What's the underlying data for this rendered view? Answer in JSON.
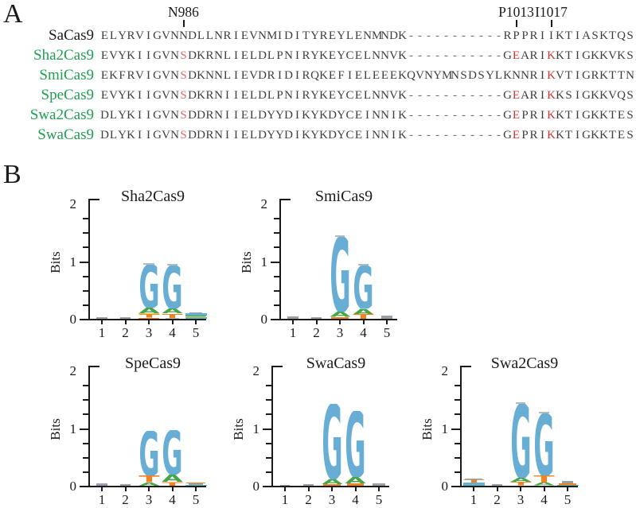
{
  "panel_a": {
    "label": "A",
    "annotations": [
      {
        "text": "N986",
        "column": 10
      },
      {
        "text": "P1013",
        "column": 48
      },
      {
        "text": "I1017",
        "column": 52
      }
    ],
    "rows": [
      {
        "name": "SaCas9",
        "name_color": "#1b1b1b",
        "seq": "ELYRVIGVNNDLLNRIEVNMIDITYREYLENMNDK-----------RPPRIIKTIASKTQS",
        "red_light": [],
        "red": []
      },
      {
        "name": "Sha2Cas9",
        "name_color": "#1ea050",
        "seq": "EVYKIIGVNSDKRNLIELDLPNIRYKEYCELNNVK-----------GEARIKKTIGKKVKS",
        "red_light": [
          10
        ],
        "red": [
          48,
          52
        ]
      },
      {
        "name": "SmiCas9",
        "name_color": "#1ea050",
        "seq": "EKFRVIGVNSDKNNLIEVDRIDIRQKEFIELEEEKQVNYMNSDSYLKNNRIKVTIGRKTTN",
        "red_light": [
          10
        ],
        "red": [
          52
        ]
      },
      {
        "name": "SpeCas9",
        "name_color": "#1ea050",
        "seq": "EVYKIIGVNSDKRNIIELDLPNIRYKEYCELNNVK-----------GEARIKKSIGKKVQS",
        "red_light": [
          10
        ],
        "red": [
          48,
          52
        ]
      },
      {
        "name": "Swa2Cas9",
        "name_color": "#1ea050",
        "seq": "DLYKIIGVNSDDRNIIELDYYDIKYKDYCEINNIK-----------GEPRIKKTIGKKTES",
        "red_light": [
          10
        ],
        "red": [
          48,
          52
        ]
      },
      {
        "name": "SwaCas9",
        "name_color": "#1ea050",
        "seq": "DLYKIIGVNSDDRNIIELDYYDIKYKDYCEINNIK-----------GEPRIKKTIGKKTES",
        "red_light": [
          10
        ],
        "red": [
          48,
          52
        ]
      }
    ],
    "colors": {
      "sequence": "#3d3d3d",
      "dash": "#6f6f6f",
      "red": "#d63434",
      "red_light": "#e06a6a"
    }
  },
  "panel_b": {
    "label": "B",
    "ylabel": "Bits",
    "ytick_labels": [
      "0",
      "1",
      "2"
    ],
    "xtick_labels": [
      "1",
      "2",
      "3",
      "4",
      "5"
    ],
    "ylim": [
      0,
      2
    ]
  },
  "chart_data": [
    {
      "type": "sequence_logo",
      "title": "Sha2Cas9",
      "ylabel": "Bits",
      "ylim": [
        0,
        2
      ],
      "x": [
        1,
        2,
        3,
        4,
        5
      ],
      "stacks": [
        [
          {
            "l": "bar",
            "c": "#9aa0a6",
            "b": 0.035,
            "w": 0.5
          }
        ],
        [
          {
            "l": "bar",
            "c": "#9aa0a6",
            "b": 0.022,
            "w": 0.5
          }
        ],
        [
          {
            "l": "bar",
            "c": "#f08222",
            "b": 0.02,
            "w": 0.95
          },
          {
            "l": "T",
            "c": "#f08222",
            "b": 0.062
          },
          {
            "l": "bar",
            "c": "#e3cf49",
            "b": 0.018,
            "w": 0.95
          },
          {
            "l": "A",
            "c": "#44a549",
            "b": 0.095
          },
          {
            "l": "G",
            "c": "#68aed4",
            "b": 0.75
          },
          {
            "l": "bar",
            "c": "#b4b9bd",
            "b": 0.025,
            "w": 0.5
          }
        ],
        [
          {
            "l": "bar",
            "c": "#b4b9bd",
            "b": 0.02,
            "w": 0.6
          },
          {
            "l": "T",
            "c": "#f08222",
            "b": 0.07
          },
          {
            "l": "A",
            "c": "#44a549",
            "b": 0.085
          },
          {
            "l": "G",
            "c": "#68aed4",
            "b": 0.75
          },
          {
            "l": "bar",
            "c": "#b4b9bd",
            "b": 0.025,
            "w": 0.5
          }
        ],
        [
          {
            "l": "bar",
            "c": "#5bbcb8",
            "b": 0.022,
            "w": 1
          },
          {
            "l": "bar",
            "c": "#e3cf49",
            "b": 0.018,
            "w": 0.9
          },
          {
            "l": "bar",
            "c": "#44a549",
            "b": 0.022,
            "w": 0.95
          },
          {
            "l": "bar",
            "c": "#68aed4",
            "b": 0.03,
            "w": 1
          },
          {
            "l": "bar",
            "c": "#9aa0a6",
            "b": 0.02,
            "w": 0.6
          }
        ]
      ]
    },
    {
      "type": "sequence_logo",
      "title": "SmiCas9",
      "ylabel": "Bits",
      "ylim": [
        0,
        2
      ],
      "x": [
        1,
        2,
        3,
        4,
        5
      ],
      "stacks": [
        [
          {
            "l": "bar",
            "c": "#9aa0a6",
            "b": 0.04,
            "w": 0.5
          }
        ],
        [
          {
            "l": "bar",
            "c": "#9aa0a6",
            "b": 0.028,
            "w": 0.5
          }
        ],
        [
          {
            "l": "bar",
            "c": "#f08222",
            "b": 0.035,
            "w": 0.8
          },
          {
            "l": "A",
            "c": "#44a549",
            "b": 0.09
          },
          {
            "l": "G",
            "c": "#68aed4",
            "b": 1.3
          },
          {
            "l": "bar",
            "c": "#b4b9bd",
            "b": 0.028,
            "w": 0.45
          }
        ],
        [
          {
            "l": "T",
            "c": "#f08222",
            "b": 0.08
          },
          {
            "l": "A",
            "c": "#44a549",
            "b": 0.1
          },
          {
            "l": "G",
            "c": "#68aed4",
            "b": 0.75
          },
          {
            "l": "bar",
            "c": "#b4b9bd",
            "b": 0.028,
            "w": 0.45
          }
        ],
        [
          {
            "l": "bar",
            "c": "#9aa0a6",
            "b": 0.05,
            "w": 0.5
          }
        ]
      ]
    },
    {
      "type": "sequence_logo",
      "title": "SpeCas9",
      "ylabel": "Bits",
      "ylim": [
        0,
        2
      ],
      "x": [
        1,
        2,
        3,
        4,
        5
      ],
      "stacks": [
        [
          {
            "l": "bar",
            "c": "#9aa0a6",
            "b": 0.04,
            "w": 0.5
          }
        ],
        [
          {
            "l": "bar",
            "c": "#9aa0a6",
            "b": 0.025,
            "w": 0.5
          }
        ],
        [
          {
            "l": "A",
            "c": "#44a549",
            "b": 0.055
          },
          {
            "l": "T",
            "c": "#f08222",
            "b": 0.12
          },
          {
            "l": "G",
            "c": "#68aed4",
            "b": 0.78
          }
        ],
        [
          {
            "l": "T",
            "c": "#f08222",
            "b": 0.075
          },
          {
            "l": "A",
            "c": "#44a549",
            "b": 0.125
          },
          {
            "l": "G",
            "c": "#68aed4",
            "b": 0.77
          }
        ],
        [
          {
            "l": "bar",
            "c": "#5bbcb8",
            "b": 0.02,
            "w": 1
          },
          {
            "l": "bar",
            "c": "#9aa0a6",
            "b": 0.02,
            "w": 0.7
          },
          {
            "l": "bar",
            "c": "#f08222",
            "b": 0.02,
            "w": 0.9
          }
        ]
      ]
    },
    {
      "type": "sequence_logo",
      "title": "SwaCas9",
      "ylabel": "Bits",
      "ylim": [
        0,
        2
      ],
      "x": [
        1,
        2,
        3,
        4,
        5
      ],
      "stacks": [
        [
          {
            "l": "bar",
            "c": "#9aa0a6",
            "b": 0.02,
            "w": 0.45
          }
        ],
        [
          {
            "l": "bar",
            "c": "#9aa0a6",
            "b": 0.03,
            "w": 0.45
          }
        ],
        [
          {
            "l": "bar",
            "c": "#f08222",
            "b": 0.03,
            "w": 0.8
          },
          {
            "l": "A",
            "c": "#44a549",
            "b": 0.085
          },
          {
            "l": "G",
            "c": "#68aed4",
            "b": 1.3
          }
        ],
        [
          {
            "l": "bar",
            "c": "#f08222",
            "b": 0.04,
            "w": 0.8
          },
          {
            "l": "A",
            "c": "#44a549",
            "b": 0.11
          },
          {
            "l": "G",
            "c": "#68aed4",
            "b": 1.15
          }
        ],
        [
          {
            "l": "bar",
            "c": "#9aa0a6",
            "b": 0.04,
            "w": 0.6
          }
        ]
      ]
    },
    {
      "type": "sequence_logo",
      "title": "Swa2Cas9",
      "ylabel": "Bits",
      "ylim": [
        0,
        2
      ],
      "x": [
        1,
        2,
        3,
        4,
        5
      ],
      "stacks": [
        [
          {
            "l": "bar",
            "c": "#5bbcb8",
            "b": 0.02,
            "w": 1
          },
          {
            "l": "bar",
            "c": "#68aed4",
            "b": 0.03,
            "w": 1
          },
          {
            "l": "T",
            "c": "#f08222",
            "b": 0.055
          },
          {
            "l": "bar",
            "c": "#68aed4",
            "b": 0.02,
            "w": 0.8
          }
        ],
        [
          {
            "l": "bar",
            "c": "#9aa0a6",
            "b": 0.025,
            "w": 0.5
          }
        ],
        [
          {
            "l": "T",
            "c": "#f08222",
            "b": 0.065
          },
          {
            "l": "A",
            "c": "#44a549",
            "b": 0.07
          },
          {
            "l": "G",
            "c": "#68aed4",
            "b": 1.28
          },
          {
            "l": "bar",
            "c": "#b4b9bd",
            "b": 0.028,
            "w": 0.45
          }
        ],
        [
          {
            "l": "A",
            "c": "#44a549",
            "b": 0.05
          },
          {
            "l": "T",
            "c": "#f08222",
            "b": 0.13
          },
          {
            "l": "G",
            "c": "#68aed4",
            "b": 1.08
          },
          {
            "l": "bar",
            "c": "#b4b9bd",
            "b": 0.028,
            "w": 0.45
          }
        ],
        [
          {
            "l": "bar",
            "c": "#5bbcb8",
            "b": 0.02,
            "w": 1
          },
          {
            "l": "bar",
            "c": "#f08222",
            "b": 0.02,
            "w": 0.85
          },
          {
            "l": "bar",
            "c": "#9aa0a6",
            "b": 0.04,
            "w": 0.5
          }
        ]
      ]
    }
  ]
}
